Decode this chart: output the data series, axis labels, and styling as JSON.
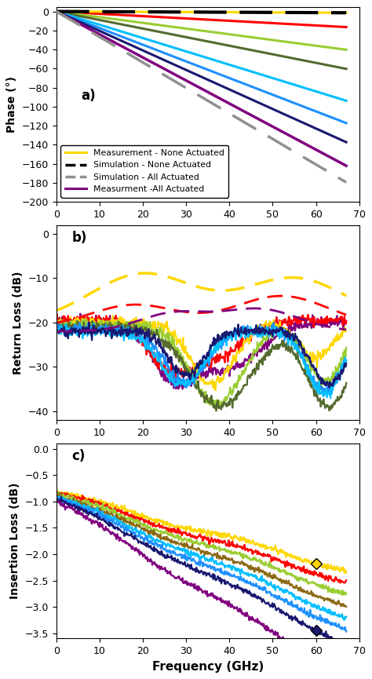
{
  "freq_fine": 500,
  "xlim": [
    0,
    70
  ],
  "panel_a": {
    "ylim": [
      -200,
      5
    ],
    "yticks": [
      0,
      -20,
      -40,
      -60,
      -80,
      -100,
      -120,
      -140,
      -160,
      -180,
      -200
    ],
    "ylabel": "Phase (°)",
    "label": "a)",
    "lines": [
      {
        "slope": -0.245,
        "color": "#FF0000",
        "lw": 2.2
      },
      {
        "slope": -0.6,
        "color": "#9ACD32",
        "lw": 2.2
      },
      {
        "slope": -0.9,
        "color": "#556B2F",
        "lw": 2.2
      },
      {
        "slope": -1.4,
        "color": "#00BFFF",
        "lw": 2.2
      },
      {
        "slope": -1.75,
        "color": "#1E90FF",
        "lw": 2.2
      },
      {
        "slope": -2.05,
        "color": "#191970",
        "lw": 2.2
      },
      {
        "slope": -2.42,
        "color": "#800080",
        "lw": 2.5
      }
    ],
    "dashed_lines": [
      {
        "slope": -0.02,
        "color": "#000000",
        "lw": 3.0,
        "dashes": [
          10,
          4
        ]
      },
      {
        "slope": -2.68,
        "color": "#909090",
        "lw": 2.5,
        "dashes": [
          10,
          5
        ]
      }
    ],
    "yellow_line": {
      "slope": -0.02,
      "color": "#FFD700",
      "lw": 2.2
    },
    "legend_entries": [
      {
        "label": "Measurement - None Actuated",
        "color": "#FFD700",
        "linestyle": "solid"
      },
      {
        "label": "Simulation - None Actuated",
        "color": "#000000",
        "linestyle": "dashed"
      },
      {
        "label": "Simulation - All Actuated",
        "color": "#909090",
        "linestyle": "dashed"
      },
      {
        "label": "Measurment -All Actuated",
        "color": "#800080",
        "linestyle": "solid"
      }
    ]
  },
  "panel_b": {
    "ylim": [
      -42,
      2
    ],
    "yticks": [
      0,
      -10,
      -20,
      -30,
      -40
    ],
    "ylabel": "Return Loss (dB)",
    "label": "b)"
  },
  "panel_c": {
    "ylim": [
      -3.6,
      0.1
    ],
    "yticks": [
      0,
      -0.5,
      -1.0,
      -1.5,
      -2.0,
      -2.5,
      -3.0,
      -3.5
    ],
    "ylabel": "Insertion Loss (dB)",
    "label": "c)"
  },
  "xlabel": "Frequency (GHz)",
  "background_color": "#FFFFFF"
}
